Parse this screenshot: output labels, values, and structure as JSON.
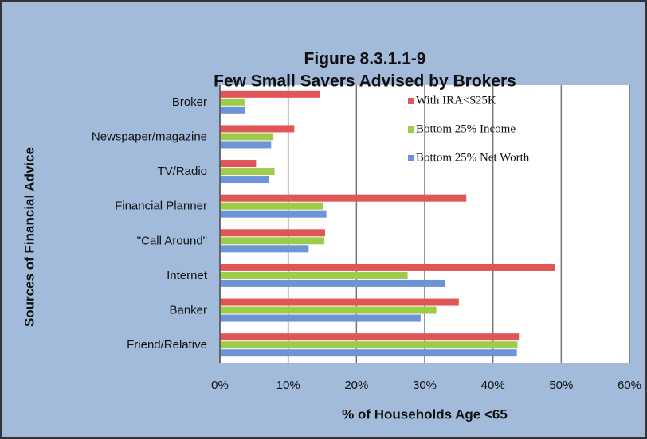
{
  "chart_data": {
    "type": "barh",
    "title": "Figure 8.3.1.1-9",
    "subtitle": "Few Small Savers Advised by Brokers",
    "x_label": "% of Households Age <65",
    "y_label": "Sources of Financial Advice",
    "categories": [
      "Broker",
      "Newspaper/magazine",
      "TV/Radio",
      "Financial Planner",
      "\"Call Around\"",
      "Internet",
      "Banker",
      "Friend/Relative"
    ],
    "series": [
      {
        "name": "With IRA<$25K",
        "color": "#e05555",
        "values": [
          14.7,
          10.9,
          5.3,
          36.1,
          15.4,
          49.1,
          35.0,
          43.8
        ]
      },
      {
        "name": "Bottom 25% Income",
        "color": "#9ccc4a",
        "values": [
          3.6,
          7.8,
          8.0,
          15.1,
          15.3,
          27.5,
          31.7,
          43.6
        ]
      },
      {
        "name": "Bottom 25% Net Worth",
        "color": "#6d95d6",
        "values": [
          3.7,
          7.5,
          7.2,
          15.6,
          13.0,
          33.0,
          29.4,
          43.5
        ]
      }
    ],
    "xlim": [
      0,
      60
    ],
    "xticks": [
      {
        "value": 0,
        "label": "0%"
      },
      {
        "value": 10,
        "label": "10%"
      },
      {
        "value": 20,
        "label": "20%"
      },
      {
        "value": 30,
        "label": "30%"
      },
      {
        "value": 40,
        "label": "40%"
      },
      {
        "value": 50,
        "label": "50%"
      },
      {
        "value": 60,
        "label": "60%"
      }
    ],
    "grid": true,
    "legend": "top-right"
  }
}
